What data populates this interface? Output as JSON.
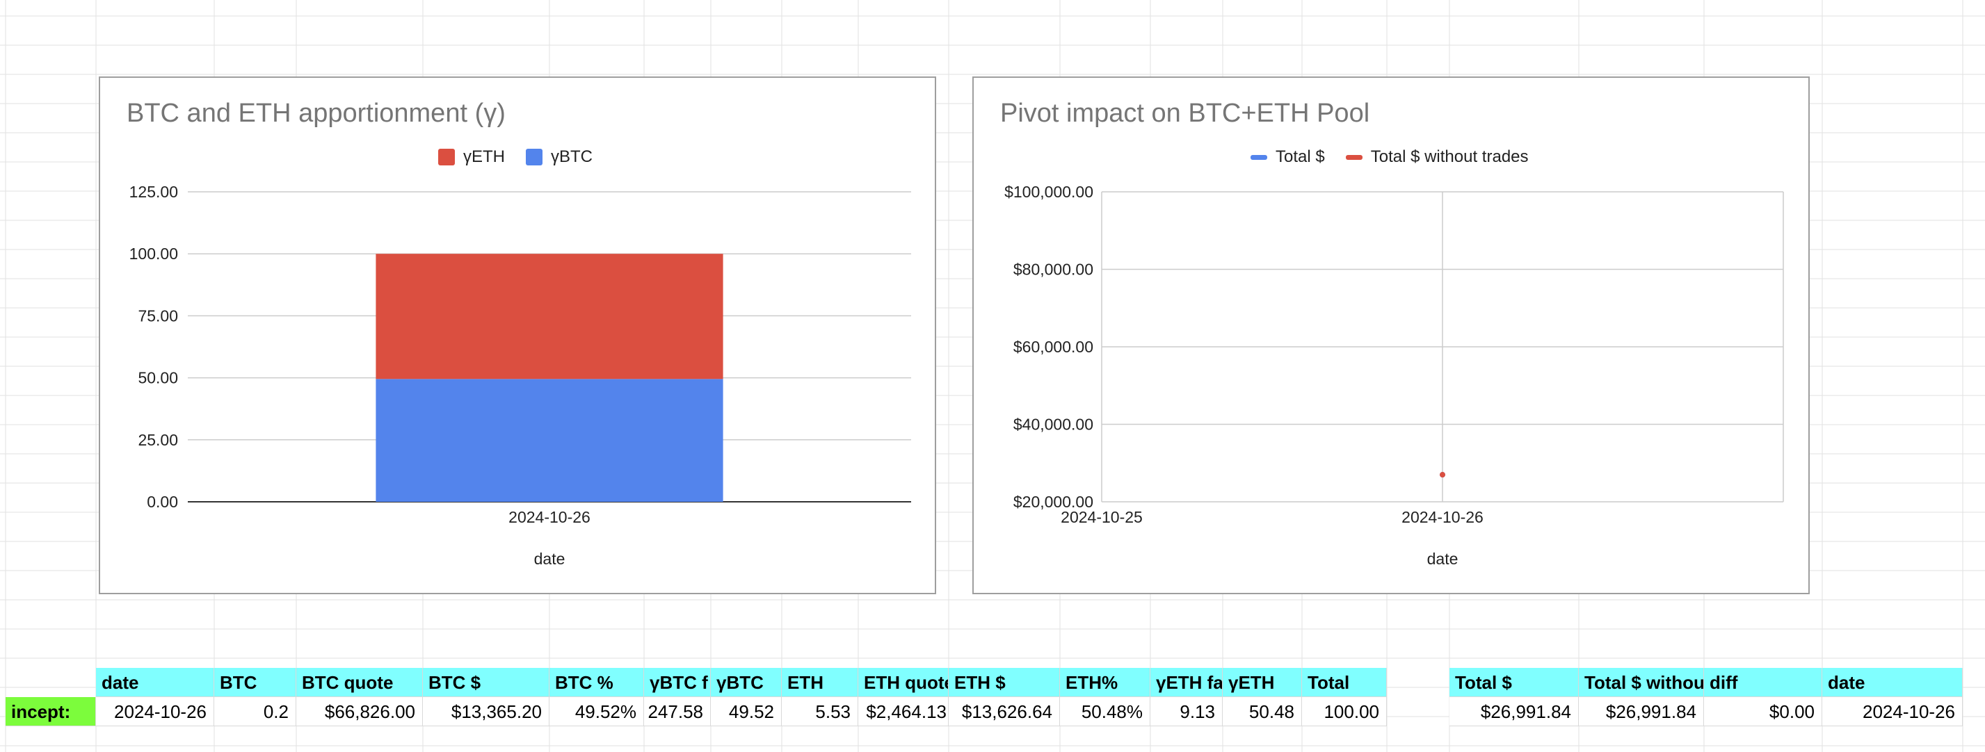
{
  "colors": {
    "eth_red": "#db4f40",
    "btc_blue": "#5384ec",
    "header_cyan": "#80ffff",
    "label_green": "#7cfc3c",
    "gridline": "#e2e2e2"
  },
  "chart_data": [
    {
      "type": "bar",
      "stacked": true,
      "title": "BTC and ETH apportionment (γ)",
      "xlabel": "date",
      "ylabel": "",
      "categories": [
        "2024-10-26"
      ],
      "series": [
        {
          "name": "γETH",
          "values": [
            50.48
          ]
        },
        {
          "name": "γBTC",
          "values": [
            49.52
          ]
        }
      ],
      "ylim": [
        0,
        125
      ],
      "yticks": [
        "0.00",
        "25.00",
        "50.00",
        "75.00",
        "100.00",
        "125.00"
      ],
      "legend": "top",
      "grid": true
    },
    {
      "type": "line",
      "title": "Pivot impact on BTC+ETH Pool",
      "xlabel": "date",
      "ylabel": "",
      "x": [
        "2024-10-26"
      ],
      "xticks": [
        "2024-10-25",
        "2024-10-26"
      ],
      "series": [
        {
          "name": "Total $",
          "values": [
            26991.84
          ]
        },
        {
          "name": "Total $ without trades",
          "values": [
            26991.84
          ]
        }
      ],
      "ylim": [
        20000,
        100000
      ],
      "yticks": [
        "$20,000.00",
        "$40,000.00",
        "$60,000.00",
        "$80,000.00",
        "$100,000.00"
      ],
      "legend": "top",
      "grid": true
    }
  ],
  "table": {
    "headers": [
      "date",
      "BTC",
      "BTC quote",
      "BTC $",
      "BTC %",
      "γBTC f",
      "γBTC",
      "ETH",
      "ETH quote",
      "ETH $",
      "ETH%",
      "γETH fa",
      "γETH",
      "Total"
    ],
    "row_label": "incept:",
    "row": [
      "2024-10-26",
      "0.2",
      "$66,826.00",
      "$13,365.20",
      "49.52%",
      "247.58",
      "49.52",
      "5.53",
      "$2,464.13",
      "$13,626.64",
      "50.48%",
      "9.13",
      "50.48",
      "100.00"
    ]
  },
  "table2": {
    "headers": [
      "Total $",
      "Total $ withou",
      "diff",
      "date"
    ],
    "row": [
      "$26,991.84",
      "$26,991.84",
      "$0.00",
      "2024-10-26"
    ]
  }
}
